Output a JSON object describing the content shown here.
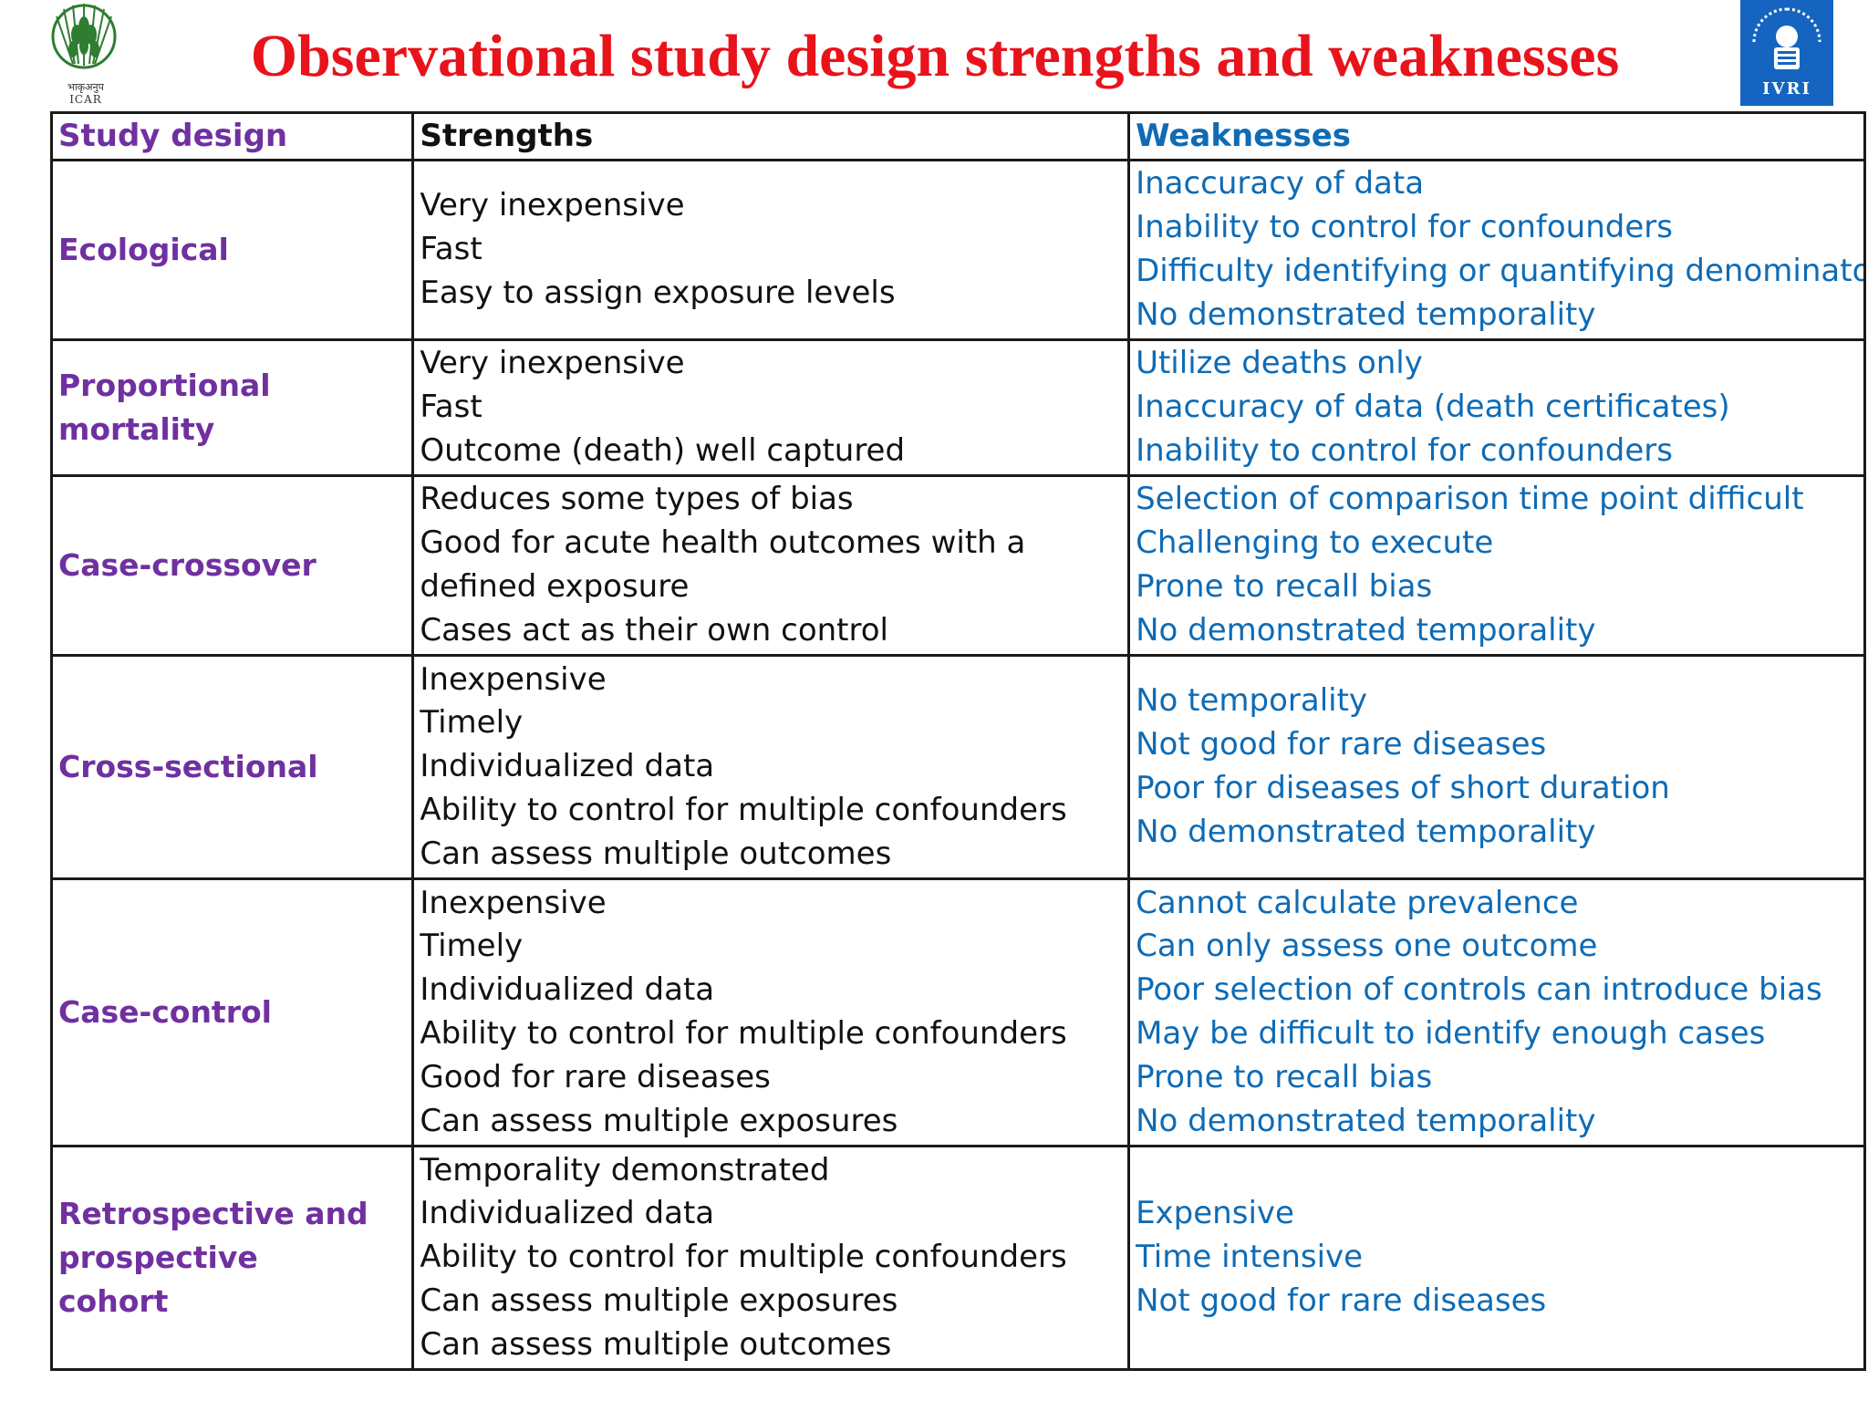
{
  "header": {
    "title": "Observational study design strengths and weaknesses",
    "logo_left_text": "ICAR",
    "logo_left_hindi": "भाकृअनुप",
    "logo_right_text": "IVRI"
  },
  "table": {
    "headers": {
      "design": "Study design",
      "strengths": "Strengths",
      "weaknesses": "Weaknesses"
    },
    "rows": [
      {
        "design": "Ecological",
        "strengths": [
          "Very inexpensive",
          "Fast",
          "Easy to assign exposure levels"
        ],
        "weaknesses": [
          "Inaccuracy of data",
          "Inability to control for confounders",
          "Difficulty identifying or quantifying denominator",
          "No demonstrated temporality"
        ]
      },
      {
        "design": "Proportional mortality",
        "strengths": [
          "Very inexpensive",
          "Fast",
          "Outcome (death) well captured"
        ],
        "weaknesses": [
          "Utilize deaths only",
          "Inaccuracy of data (death certificates)",
          "Inability to control for confounders"
        ]
      },
      {
        "design": "Case-crossover",
        "strengths": [
          "Reduces some types of bias",
          "Good for acute health outcomes with a defined exposure",
          "Cases act as their own control"
        ],
        "weaknesses": [
          "Selection of comparison time point difficult",
          "Challenging to execute",
          "Prone to recall bias",
          "No demonstrated temporality"
        ]
      },
      {
        "design": "Cross-sectional",
        "strengths": [
          "Inexpensive",
          "Timely",
          "Individualized data",
          "Ability to control for multiple confounders",
          "Can assess multiple outcomes"
        ],
        "weaknesses": [
          "No temporality",
          "Not good for rare diseases",
          "Poor for diseases of short duration",
          "No demonstrated temporality"
        ]
      },
      {
        "design": "Case-control",
        "strengths": [
          "Inexpensive",
          "Timely",
          "Individualized data",
          "Ability to control for multiple confounders",
          "Good for rare diseases",
          "Can assess multiple exposures"
        ],
        "weaknesses": [
          "Cannot calculate prevalence",
          "Can only assess one outcome",
          "Poor selection of controls can introduce bias",
          "May be difficult to identify enough cases",
          "Prone to recall bias",
          "No demonstrated temporality"
        ]
      },
      {
        "design": "Retrospective and prospective cohort",
        "strengths": [
          "Temporality demonstrated",
          "Individualized data",
          "Ability to control for multiple confounders",
          "Can assess multiple exposures",
          "Can assess multiple outcomes"
        ],
        "weaknesses": [
          "Expensive",
          "Time intensive",
          "Not good for rare diseases"
        ]
      }
    ]
  }
}
